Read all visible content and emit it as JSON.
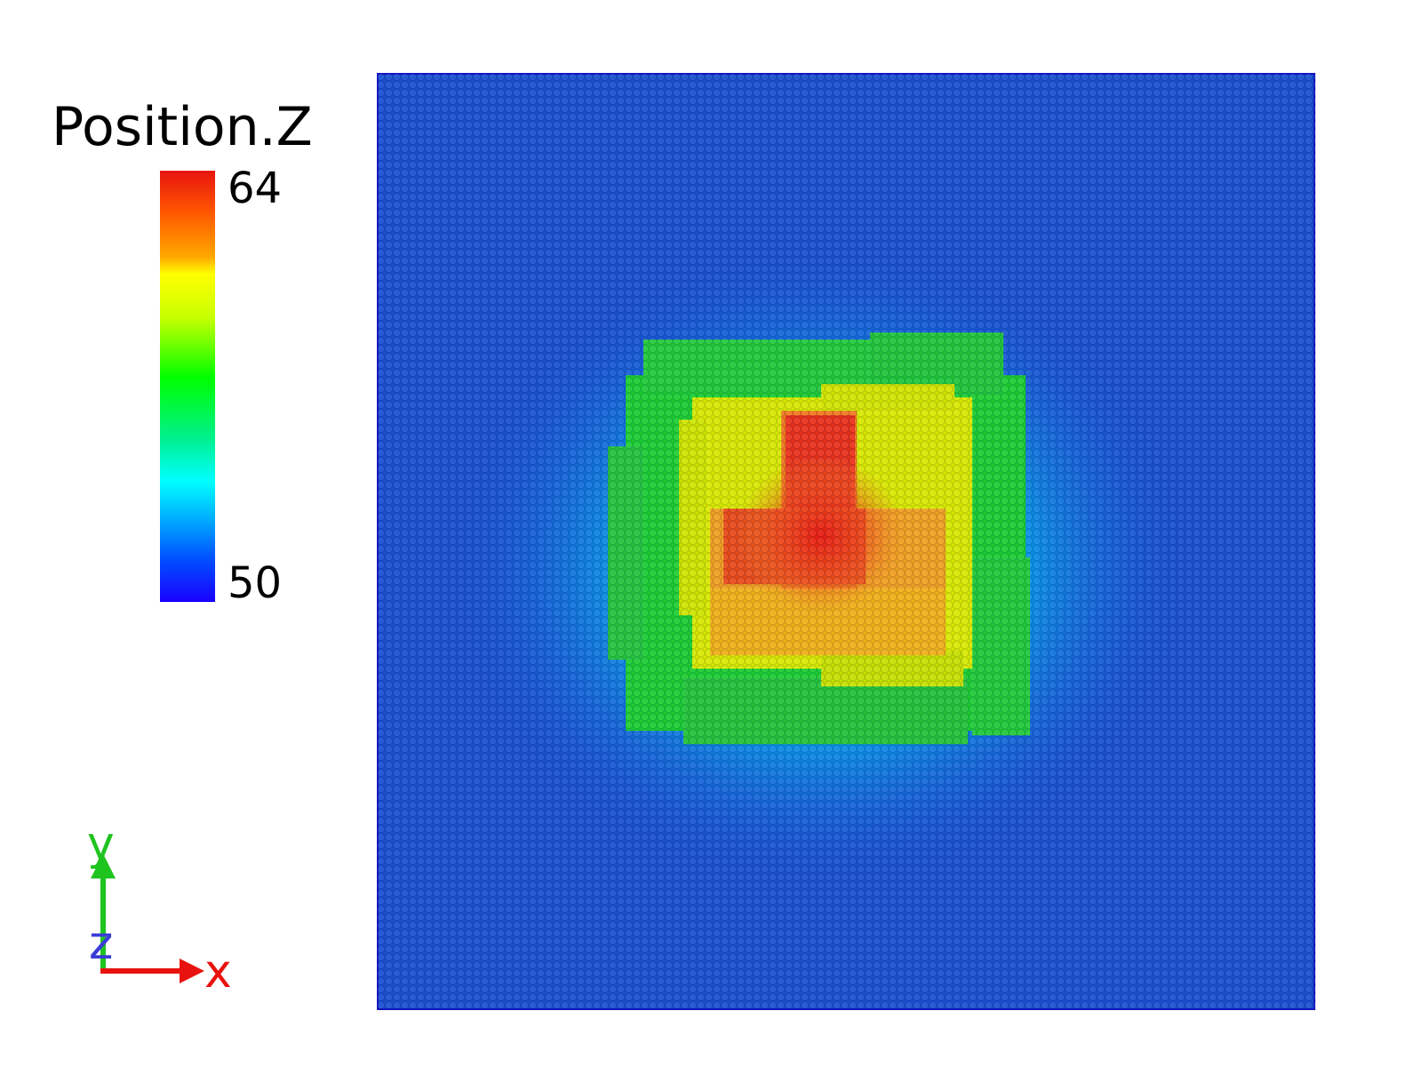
{
  "legend": {
    "title": "Position.Z",
    "max_label": "64",
    "min_label": "50",
    "colormap": [
      "#1a00ff",
      "#0050ff",
      "#00b4ff",
      "#00ffff",
      "#00f08c",
      "#00ff00",
      "#c8ff00",
      "#ffff00",
      "#ffa800",
      "#ff5a00",
      "#e8130f"
    ]
  },
  "axes_tripod": {
    "x_label": "x",
    "y_label": "y",
    "z_label": "z",
    "x_color": "#e8130f",
    "y_color": "#1fc41f",
    "z_color": "#3b3bd6"
  },
  "scene": {
    "background_color": "#1a4fd0",
    "peak_color": "#e8130f"
  }
}
